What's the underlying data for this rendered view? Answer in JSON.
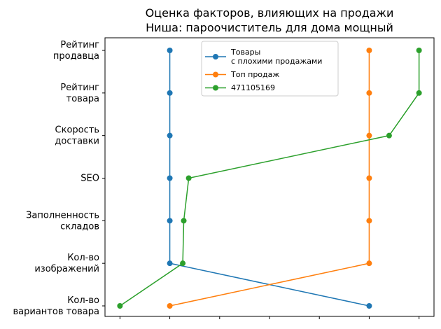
{
  "chart_data": {
    "type": "line",
    "orientation": "horizontal",
    "title_lines": [
      "Оценка факторов, влияющих на продажи",
      "Ниша: пароочиститель для дома мощный"
    ],
    "categories": [
      [
        "Рейтинг",
        "продавца"
      ],
      [
        "Рейтинг",
        "товара"
      ],
      [
        "Скорость",
        "доставки"
      ],
      [
        "SEO"
      ],
      [
        "Заполненность",
        "складов"
      ],
      [
        "Кол-во",
        "изображений"
      ],
      [
        "Кол-во",
        "вариантов товара"
      ]
    ],
    "xlim": [
      -0.3,
      6.3
    ],
    "xticks": [
      0,
      1,
      2,
      3,
      4,
      5,
      6
    ],
    "xtick_labels_visible": false,
    "legend_position": "top-center",
    "series": [
      {
        "name_lines": [
          "Товары",
          "с плохими продажами"
        ],
        "color": "#1f77b4",
        "values": [
          1,
          1,
          1,
          1,
          1,
          1,
          5
        ]
      },
      {
        "name_lines": [
          "Топ продаж"
        ],
        "color": "#ff7f0e",
        "values": [
          5,
          5,
          5,
          5,
          5,
          5,
          1
        ]
      },
      {
        "name_lines": [
          "471105169"
        ],
        "color": "#2ca02c",
        "values": [
          6,
          6,
          5.4,
          1.38,
          1.28,
          1.26,
          0
        ]
      }
    ]
  }
}
